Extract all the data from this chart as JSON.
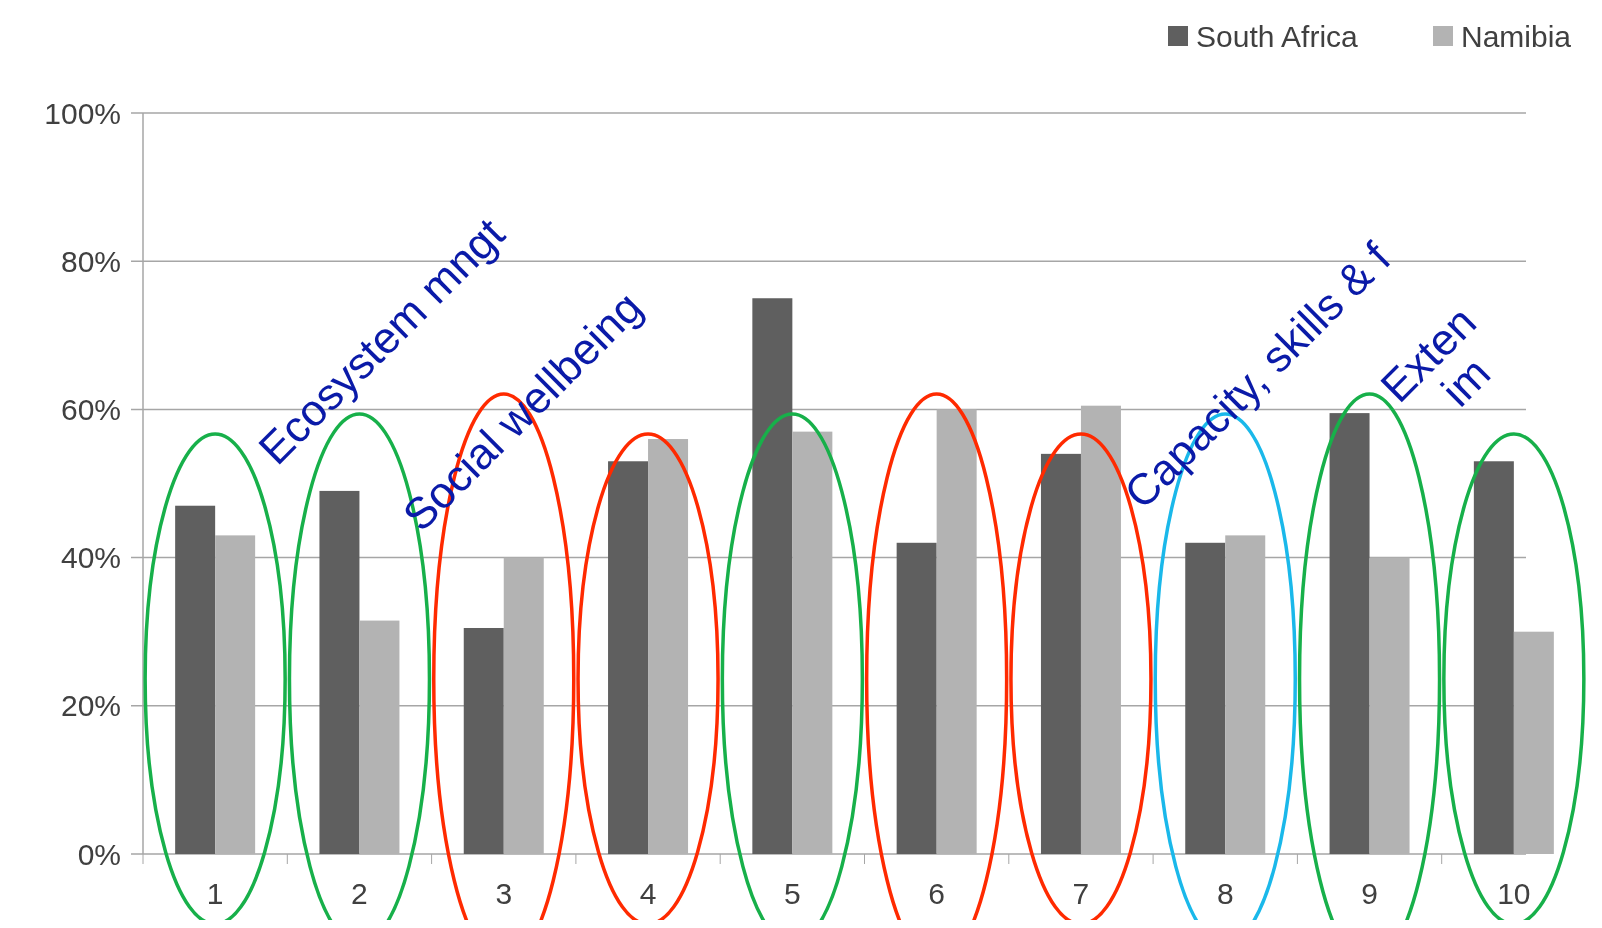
{
  "chart_data": {
    "type": "bar",
    "categories": [
      "1",
      "2",
      "3",
      "4",
      "5",
      "6",
      "7",
      "8",
      "9",
      "10"
    ],
    "series": [
      {
        "name": "South Africa",
        "color": "#5f5f5f",
        "values": [
          47,
          49,
          30.5,
          53,
          75,
          42,
          54,
          42,
          59.5,
          53
        ]
      },
      {
        "name": "Namibia",
        "color": "#b3b3b3",
        "values": [
          43,
          31.5,
          40,
          56,
          57,
          60,
          60.5,
          43,
          40,
          30
        ]
      }
    ],
    "ylim": [
      0,
      100
    ],
    "yticks": [
      {
        "value": 0,
        "label": "0%"
      },
      {
        "value": 20,
        "label": "20%"
      },
      {
        "value": 40,
        "label": "40%"
      },
      {
        "value": 60,
        "label": "60%"
      },
      {
        "value": 80,
        "label": "80%"
      },
      {
        "value": 100,
        "label": "100%"
      }
    ],
    "grid": "y",
    "legend": "top right",
    "annotations": [
      {
        "text": "Ecosystem mngt",
        "x": "2",
        "y": 49
      },
      {
        "text": "Social wellbeing",
        "x": "3",
        "y": 40
      },
      {
        "text": "Capacity, skills & f",
        "x": "8",
        "y": 43
      },
      {
        "text": "Exten\nim",
        "x": "10",
        "y": 53
      }
    ]
  }
}
